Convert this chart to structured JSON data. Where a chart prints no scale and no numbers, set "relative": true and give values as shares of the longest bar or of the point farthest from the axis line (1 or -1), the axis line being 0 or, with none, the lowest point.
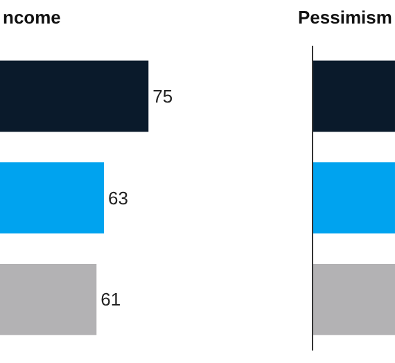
{
  "chart_data": [
    {
      "type": "bar",
      "orientation": "horizontal",
      "title": "ncome",
      "categories": [
        null,
        null,
        null
      ],
      "values": [
        75,
        63,
        61
      ],
      "colors": [
        "#0a1a2b",
        "#00a3ef",
        "#b3b2b4"
      ],
      "data_labels": true,
      "xlim": [
        35,
        118
      ]
    },
    {
      "type": "bar",
      "orientation": "horizontal",
      "title": "Pessimism",
      "relative": true,
      "categories": [
        null,
        null,
        null
      ],
      "values": [
        1,
        1,
        1
      ],
      "colors": [
        "#0a1a2b",
        "#00a3ef",
        "#b3b2b4"
      ]
    }
  ]
}
